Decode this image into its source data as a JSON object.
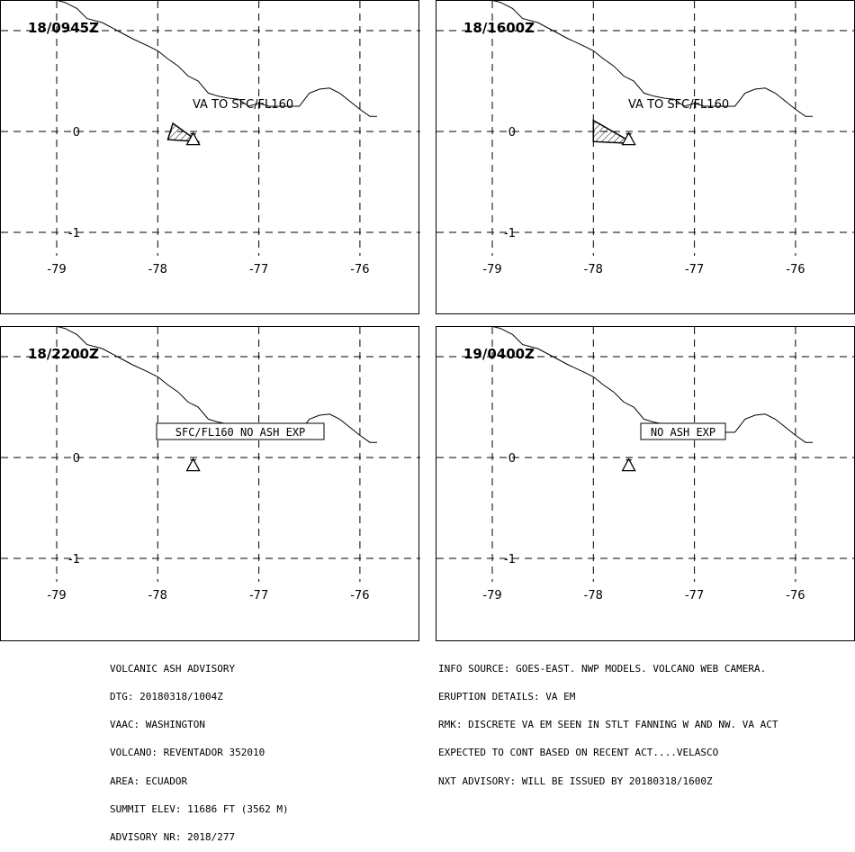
{
  "panels": [
    {
      "title": "18/0945Z",
      "label": "VA TO SFC/FL160",
      "label_boxed": false,
      "ash": [
        [
          -77.9,
          -0.08
        ],
        [
          -77.85,
          0.08
        ],
        [
          -77.6,
          -0.1
        ]
      ],
      "volcano": [
        -77.65,
        -0.077
      ]
    },
    {
      "title": "18/1600Z",
      "label": "VA TO SFC/FL160",
      "label_boxed": false,
      "ash": [
        [
          -78.0,
          -0.1
        ],
        [
          -78.0,
          0.11
        ],
        [
          -77.6,
          -0.12
        ]
      ],
      "volcano": [
        -77.65,
        -0.077
      ]
    },
    {
      "title": "18/2200Z",
      "label": "SFC/FL160 NO ASH EXP",
      "label_boxed": true,
      "ash": null,
      "volcano": [
        -77.65,
        -0.077
      ]
    },
    {
      "title": "19/0400Z",
      "label": "NO ASH EXP",
      "label_boxed": true,
      "ash": null,
      "volcano": [
        -77.65,
        -0.077
      ]
    }
  ],
  "axes": {
    "x_ticks": [
      "-79",
      "-78",
      "-77",
      "-76"
    ],
    "y_ticks": [
      "0",
      "-1"
    ],
    "lon_values": [
      -79,
      -78,
      -77,
      -76
    ],
    "lat_values": [
      1,
      0,
      -1
    ],
    "lon_range": [
      -79.0,
      -75.83
    ],
    "lat_range": [
      -1.8,
      1.3
    ]
  },
  "coastline": [
    [
      -79.0,
      1.3
    ],
    [
      -78.92,
      1.28
    ],
    [
      -78.8,
      1.22
    ],
    [
      -78.7,
      1.12
    ],
    [
      -78.55,
      1.08
    ],
    [
      -78.4,
      1.0
    ],
    [
      -78.25,
      0.92
    ],
    [
      -78.1,
      0.85
    ],
    [
      -78.0,
      0.8
    ],
    [
      -77.9,
      0.72
    ],
    [
      -77.8,
      0.65
    ],
    [
      -77.7,
      0.55
    ],
    [
      -77.6,
      0.5
    ],
    [
      -77.5,
      0.38
    ],
    [
      -77.4,
      0.35
    ],
    [
      -77.3,
      0.33
    ],
    [
      -77.2,
      0.32
    ],
    [
      -77.1,
      0.25
    ],
    [
      -77.0,
      0.28
    ],
    [
      -76.9,
      0.25
    ],
    [
      -76.8,
      0.25
    ],
    [
      -76.7,
      0.25
    ],
    [
      -76.6,
      0.25
    ],
    [
      -76.5,
      0.38
    ],
    [
      -76.4,
      0.42
    ],
    [
      -76.3,
      0.43
    ],
    [
      -76.2,
      0.38
    ],
    [
      -76.1,
      0.3
    ],
    [
      -76.0,
      0.22
    ],
    [
      -75.9,
      0.15
    ],
    [
      -75.83,
      0.15
    ]
  ],
  "advisory_left": [
    "VOLCANIC ASH ADVISORY",
    "DTG: 20180318/1004Z",
    "VAAC: WASHINGTON",
    "VOLCANO: REVENTADOR 352010",
    "AREA: ECUADOR",
    "SUMMIT ELEV: 11686 FT (3562 M)",
    "ADVISORY NR: 2018/277"
  ],
  "advisory_right": [
    "INFO SOURCE: GOES-EAST. NWP MODELS. VOLCANO WEB CAMERA.",
    "ERUPTION DETAILS: VA EM",
    "RMK: DISCRETE VA EM SEEN IN STLT FANNING W AND NW. VA ACT",
    "EXPECTED TO CONT BASED ON RECENT ACT....VELASCO",
    "NXT ADVISORY: WILL BE ISSUED BY 20180318/1600Z"
  ]
}
